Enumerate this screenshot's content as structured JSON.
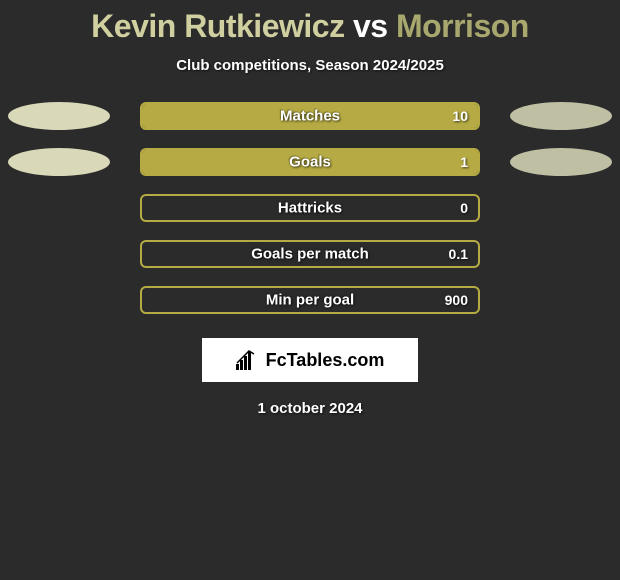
{
  "title": {
    "player1": "Kevin Rutkiewicz",
    "vs": "vs",
    "player2": "Morrison",
    "player1_color": "#d0cfa0",
    "vs_color": "#ffffff",
    "player2_color": "#a8a86e"
  },
  "subtitle": "Club competitions, Season 2024/2025",
  "background_color": "#2b2b2b",
  "bar_color": "#b5aa43",
  "pill_left_color": "#d9d8b8",
  "pill_right_color": "#bfbfa3",
  "stats": [
    {
      "label": "Matches",
      "value": "10",
      "fill_pct": 100,
      "left_pill": true,
      "right_pill": true
    },
    {
      "label": "Goals",
      "value": "1",
      "fill_pct": 100,
      "left_pill": true,
      "right_pill": true
    },
    {
      "label": "Hattricks",
      "value": "0",
      "fill_pct": 0,
      "left_pill": false,
      "right_pill": false
    },
    {
      "label": "Goals per match",
      "value": "0.1",
      "fill_pct": 0,
      "left_pill": false,
      "right_pill": false
    },
    {
      "label": "Min per goal",
      "value": "900",
      "fill_pct": 0,
      "left_pill": false,
      "right_pill": false
    }
  ],
  "logo": {
    "text": "FcTables.com"
  },
  "date": "1 october 2024"
}
